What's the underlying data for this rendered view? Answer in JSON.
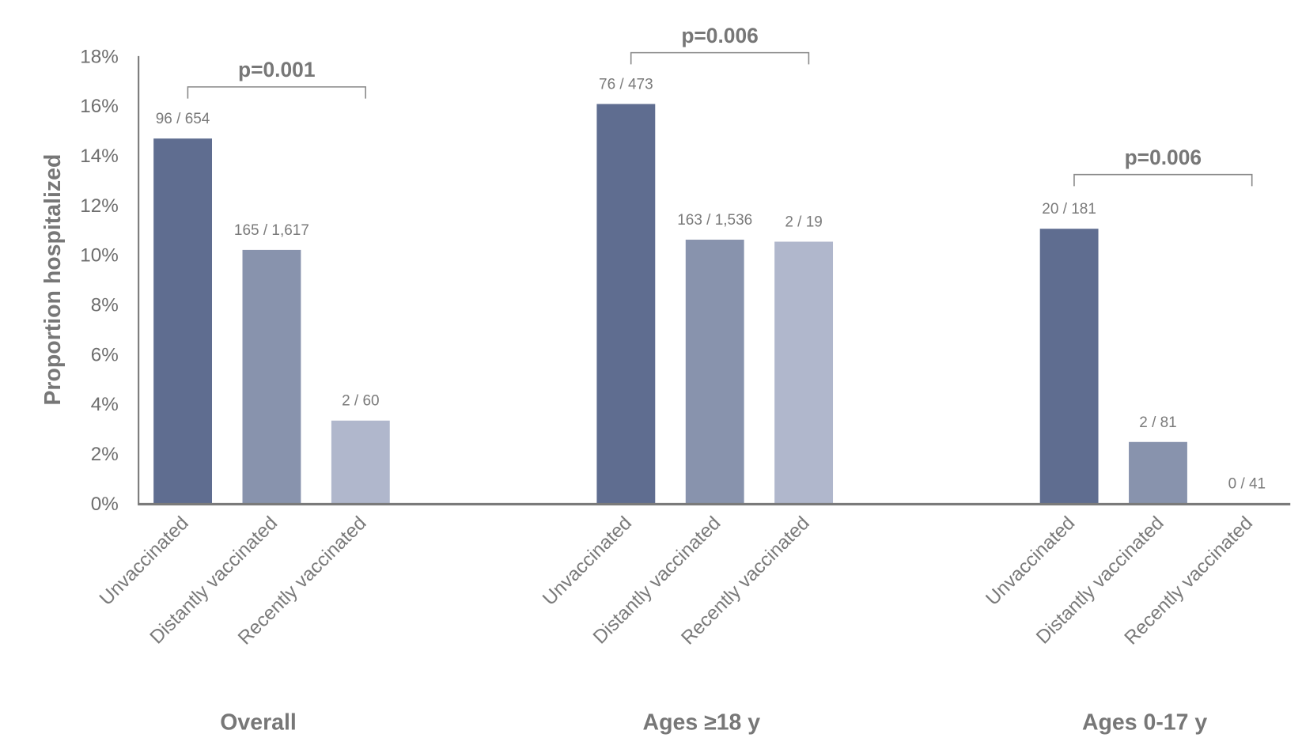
{
  "chart_data": {
    "type": "bar",
    "title": "",
    "xlabel": "",
    "ylabel": "Proportion hospitalized",
    "ylim": [
      0,
      18
    ],
    "yticks": [
      "0%",
      "2%",
      "4%",
      "6%",
      "8%",
      "10%",
      "12%",
      "14%",
      "16%",
      "18%"
    ],
    "grid": false,
    "categories": [
      "Unvaccinated",
      "Distantly vaccinated",
      "Recently vaccinated"
    ],
    "colors": [
      "#5f6d90",
      "#8893ad",
      "#b0b7cc"
    ],
    "groups": [
      {
        "name": "Overall",
        "values": [
          14.68,
          10.2,
          3.33
        ],
        "labels": [
          "96 / 654",
          "165 / 1,617",
          "2 / 60"
        ],
        "pvalue": "p=0.001",
        "bracket": [
          0,
          2
        ]
      },
      {
        "name": "Ages ≥18 y",
        "values": [
          16.07,
          10.61,
          10.53
        ],
        "labels": [
          "76 / 473",
          "163 / 1,536",
          "2 / 19"
        ],
        "pvalue": "p=0.006",
        "bracket": [
          0,
          2
        ]
      },
      {
        "name": "Ages 0-17 y",
        "values": [
          11.05,
          2.47,
          0
        ],
        "labels": [
          "20 / 181",
          "2 / 81",
          "0 / 41"
        ],
        "pvalue": "p=0.006",
        "bracket": [
          0,
          2
        ]
      }
    ]
  }
}
